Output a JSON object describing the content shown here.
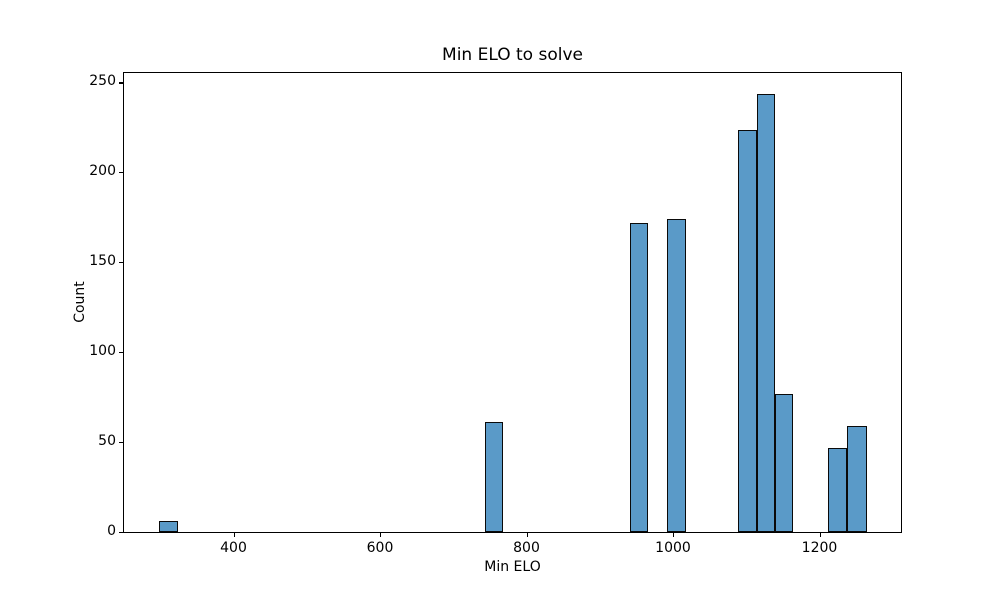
{
  "chart_data": {
    "type": "bar",
    "subtype": "histogram",
    "title": "Min ELO to solve",
    "xlabel": "Min ELO",
    "ylabel": "Count",
    "xlim": [
      249.9,
      1310.5
    ],
    "ylim": [
      0,
      255.5
    ],
    "xticks": [
      400,
      600,
      800,
      1000,
      1200
    ],
    "yticks": [
      0,
      50,
      100,
      150,
      200,
      250
    ],
    "grid": false,
    "legend": null,
    "bar_fill_color": "#5a9ac8",
    "bar_edge_color": "#0a0a0a",
    "bins": [
      {
        "x0": 298.0,
        "x1": 323.6,
        "count": 6
      },
      {
        "x0": 742.3,
        "x1": 768.0,
        "count": 61
      },
      {
        "x0": 940.0,
        "x1": 965.8,
        "count": 172
      },
      {
        "x0": 991.0,
        "x1": 1017.0,
        "count": 174
      },
      {
        "x0": 1087.9,
        "x1": 1113.9,
        "count": 224
      },
      {
        "x0": 1113.9,
        "x1": 1138.8,
        "count": 244
      },
      {
        "x0": 1138.8,
        "x1": 1163.8,
        "count": 77
      },
      {
        "x0": 1211.3,
        "x1": 1237.3,
        "count": 47
      },
      {
        "x0": 1237.3,
        "x1": 1263.8,
        "count": 59
      }
    ],
    "counts": [
      6,
      61,
      172,
      174,
      224,
      244,
      77,
      47,
      59
    ]
  }
}
